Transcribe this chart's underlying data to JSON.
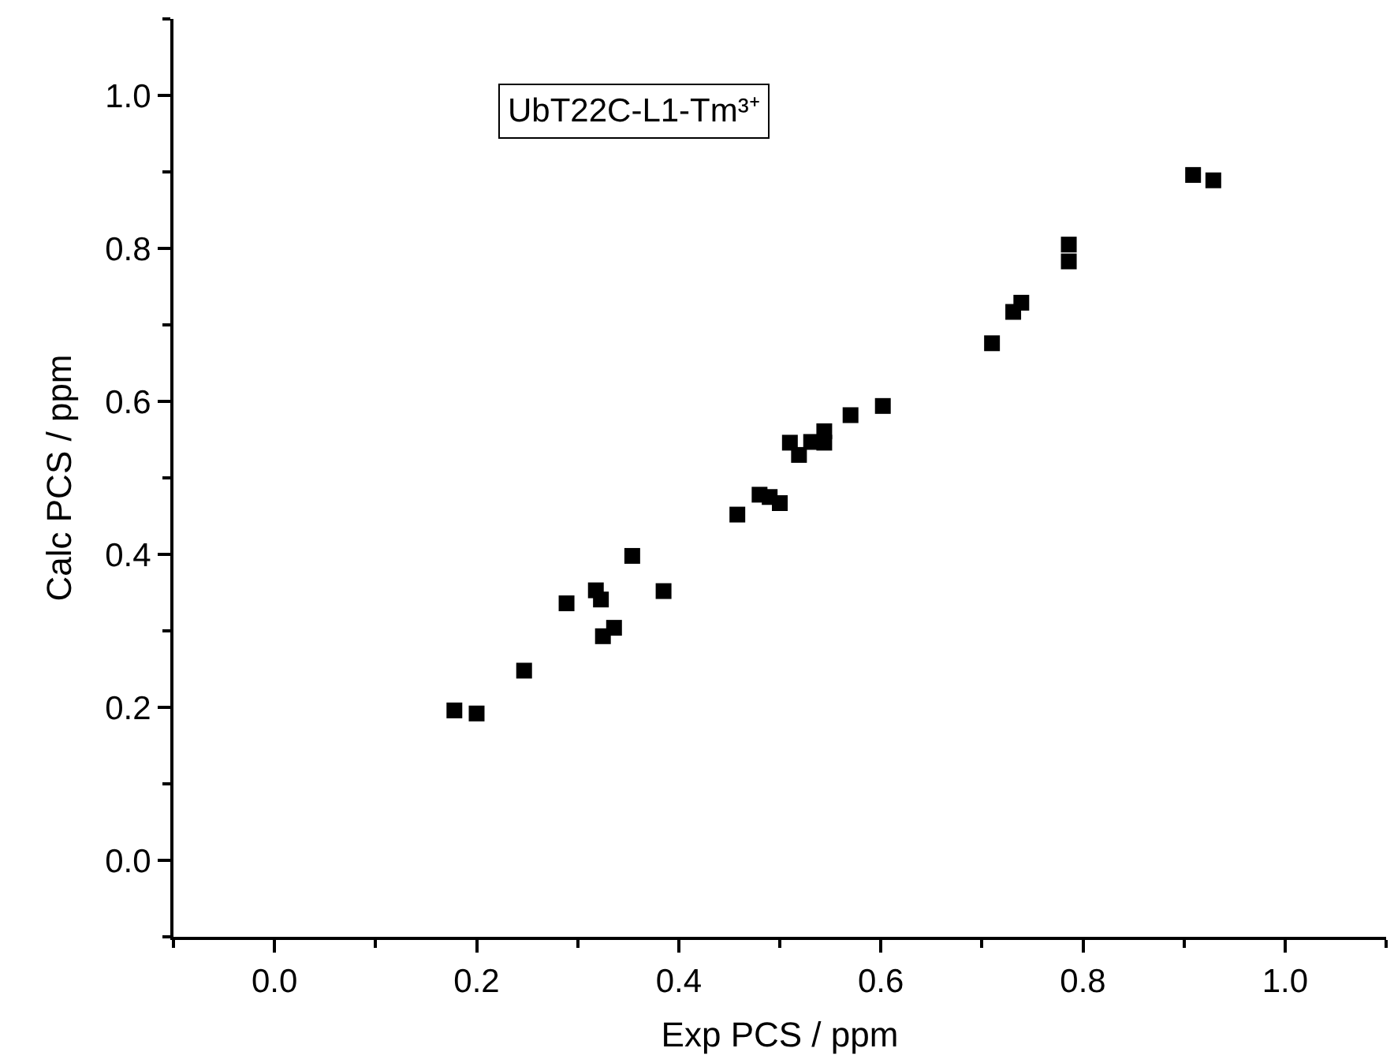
{
  "chart_data": {
    "type": "scatter",
    "xlabel": "Exp PCS / ppm",
    "ylabel": "Calc PCS / ppm",
    "annotations": [
      "UbT22C-L1-Tm³⁺"
    ],
    "marker": "square",
    "x": [
      0.178,
      0.2,
      0.247,
      0.289,
      0.318,
      0.323,
      0.325,
      0.336,
      0.354,
      0.385,
      0.458,
      0.48,
      0.49,
      0.5,
      0.51,
      0.519,
      0.531,
      0.544,
      0.544,
      0.57,
      0.602,
      0.71,
      0.731,
      0.739,
      0.786,
      0.786,
      0.909,
      0.929
    ],
    "series": [
      {
        "color": "#000000",
        "values": [
          0.196,
          0.192,
          0.248,
          0.336,
          0.353,
          0.341,
          0.293,
          0.304,
          0.398,
          0.352,
          0.452,
          0.478,
          0.475,
          0.467,
          0.546,
          0.53,
          0.547,
          0.561,
          0.546,
          0.582,
          0.594,
          0.676,
          0.717,
          0.729,
          0.805,
          0.783,
          0.896,
          0.889
        ]
      }
    ],
    "xlim": [
      -0.1,
      1.1
    ],
    "ylim": [
      -0.1,
      1.1
    ],
    "xticks": [
      {
        "value": 0.0,
        "label": "0.0"
      },
      {
        "value": 0.2,
        "label": "0.2"
      },
      {
        "value": 0.4,
        "label": "0.4"
      },
      {
        "value": 0.6,
        "label": "0.6"
      },
      {
        "value": 0.8,
        "label": "0.8"
      },
      {
        "value": 1.0,
        "label": "1.0"
      }
    ],
    "yticks": [
      {
        "value": 0.0,
        "label": "0.0"
      },
      {
        "value": 0.2,
        "label": "0.2"
      },
      {
        "value": 0.4,
        "label": "0.4"
      },
      {
        "value": 0.6,
        "label": "0.6"
      },
      {
        "value": 0.8,
        "label": "0.8"
      },
      {
        "value": 1.0,
        "label": "1.0"
      }
    ]
  }
}
